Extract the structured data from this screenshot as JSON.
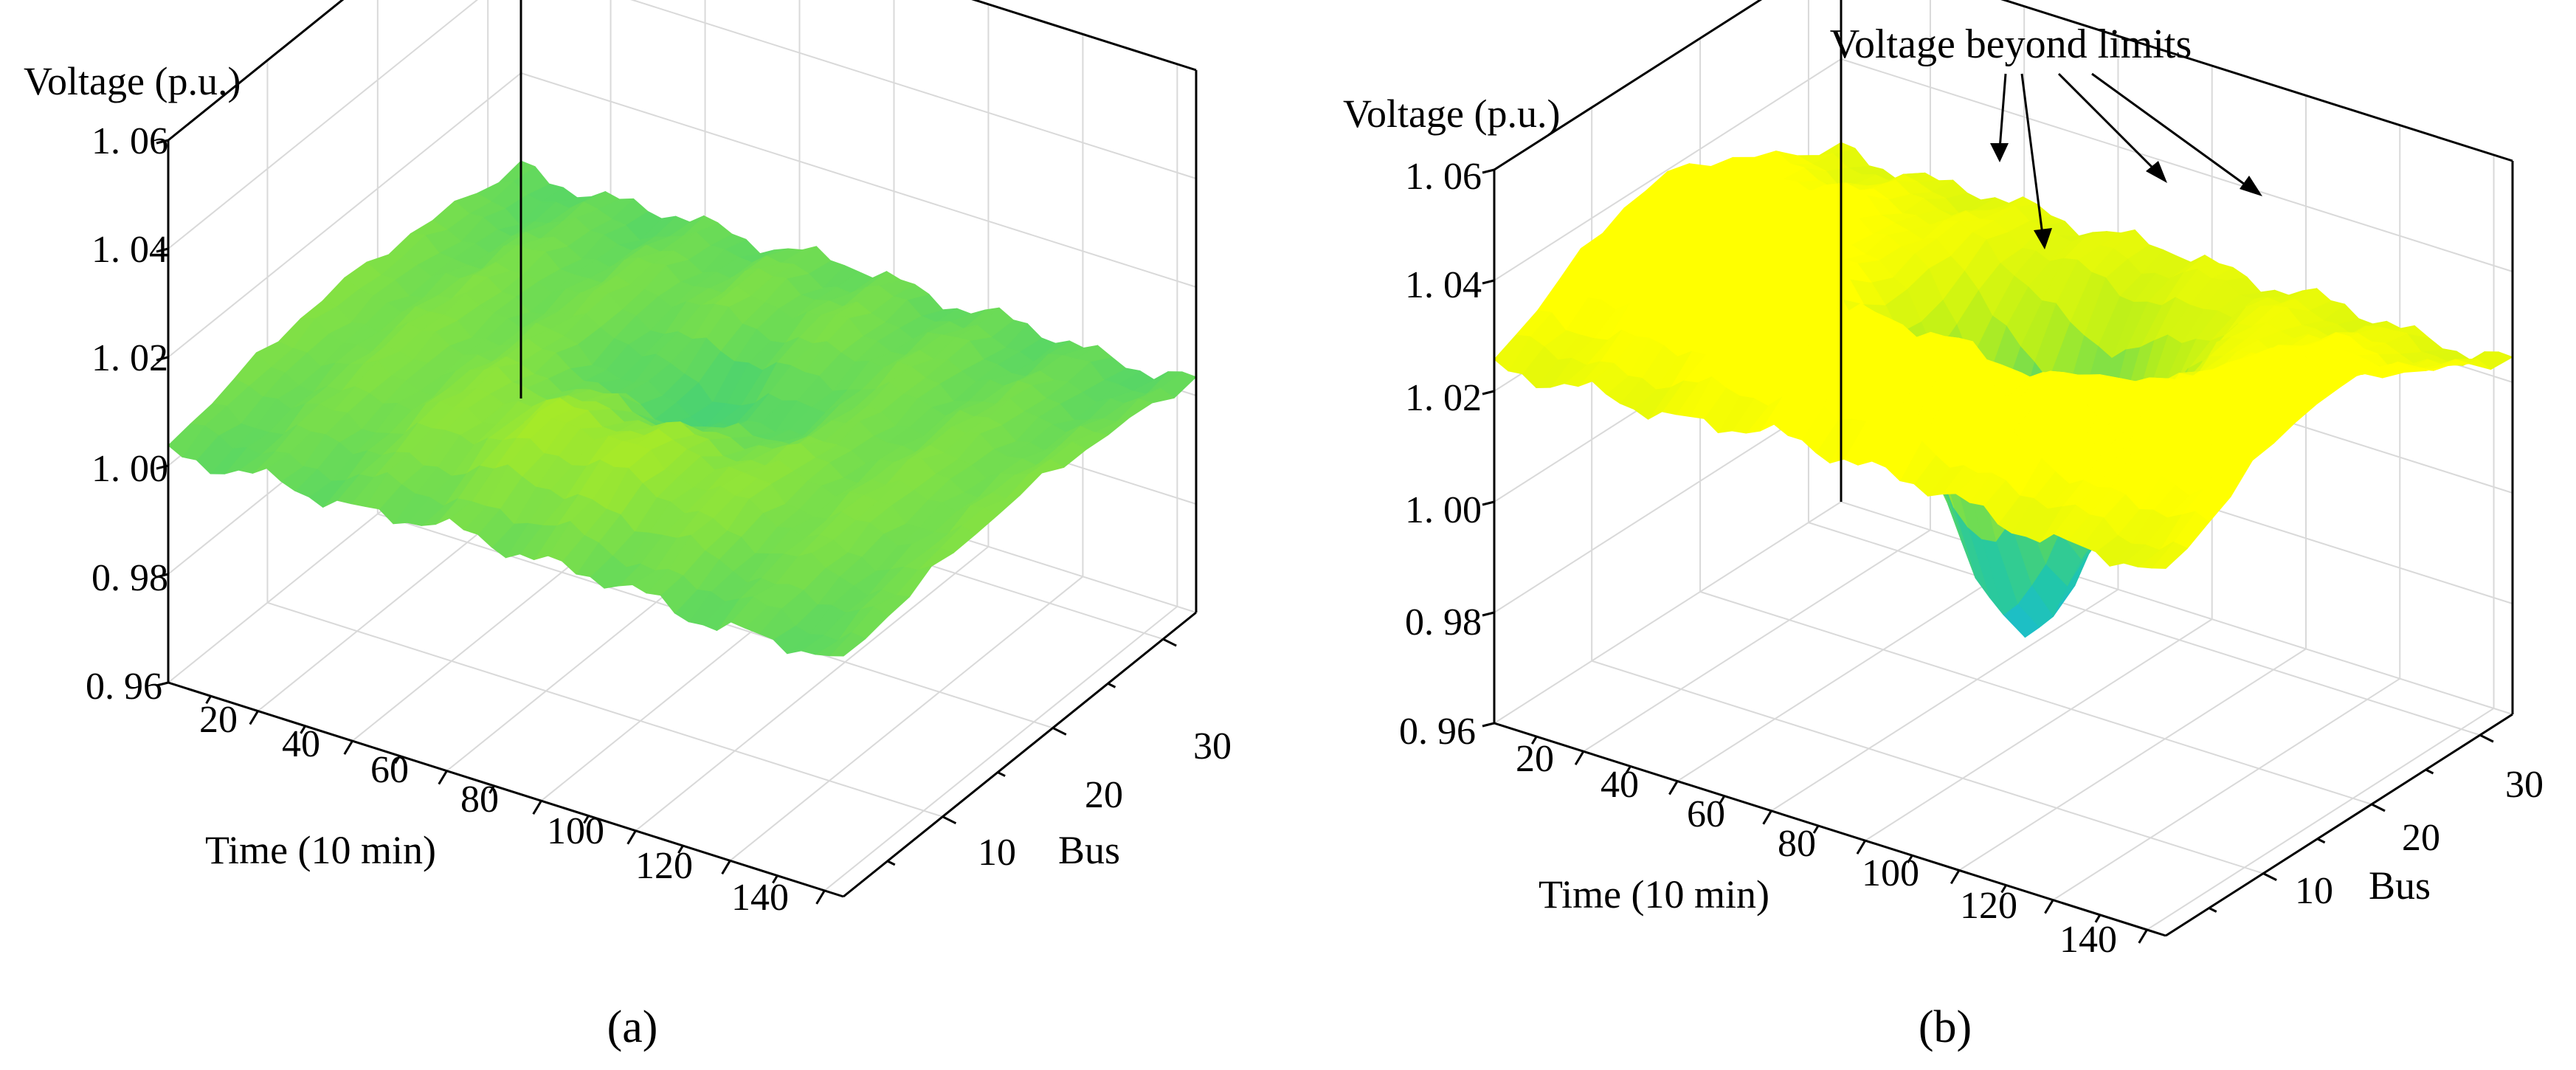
{
  "chart_data": [
    {
      "panel_label": "(a)",
      "type": "surface",
      "zlabel": "Voltage (p.u.)",
      "xlabel": "Time (10 min)",
      "ylabel": "Bus",
      "z_ticks": [
        "0. 96",
        "0. 98",
        "1. 00",
        "1. 02",
        "1. 04",
        "1. 06"
      ],
      "x_ticks": [
        "20",
        "40",
        "60",
        "80",
        "100",
        "120",
        "140"
      ],
      "y_ticks": [
        "10",
        "20",
        "30"
      ],
      "zlim": [
        0.96,
        1.06
      ],
      "xlim": [
        1,
        144
      ],
      "ylim": [
        1,
        33
      ],
      "grid": true,
      "colormap": [
        "#1ab8dc",
        "#21c7a9",
        "#4fd46c",
        "#b6ee1c",
        "#ffff00"
      ],
      "overlimit_color": "#ff0000",
      "surface_params": {
        "base": 1.0,
        "dip_amp": 0.012,
        "dip_sigma": 5,
        "rise_amp": 0.011,
        "rise_sigma": 16,
        "mid_peak": 0.004
      }
    },
    {
      "panel_label": "(b)",
      "type": "surface",
      "zlabel": "Voltage (p.u.)",
      "xlabel": "Time (10 min)",
      "ylabel": "Bus",
      "z_ticks": [
        "0. 96",
        "0. 98",
        "1. 00",
        "1. 02",
        "1. 04",
        "1. 06"
      ],
      "x_ticks": [
        "20",
        "40",
        "60",
        "80",
        "100",
        "120",
        "140"
      ],
      "y_ticks": [
        "10",
        "20",
        "30"
      ],
      "zlim": [
        0.96,
        1.06
      ],
      "xlim": [
        1,
        144
      ],
      "ylim": [
        1,
        33
      ],
      "grid": true,
      "colormap": [
        "#1ab8dc",
        "#21c7a9",
        "#4fd46c",
        "#b6ee1c",
        "#ffff00"
      ],
      "overlimit_color": "#ff0000",
      "upper_limit": 1.05,
      "annotation": "Voltage beyond limits",
      "surface_params": {
        "base": 1.02,
        "dip_amp": 0.075,
        "dip_sigma": 7,
        "rise_amp": 0.03,
        "rise_sigma": 13,
        "mid_peak": 0.008
      }
    }
  ]
}
